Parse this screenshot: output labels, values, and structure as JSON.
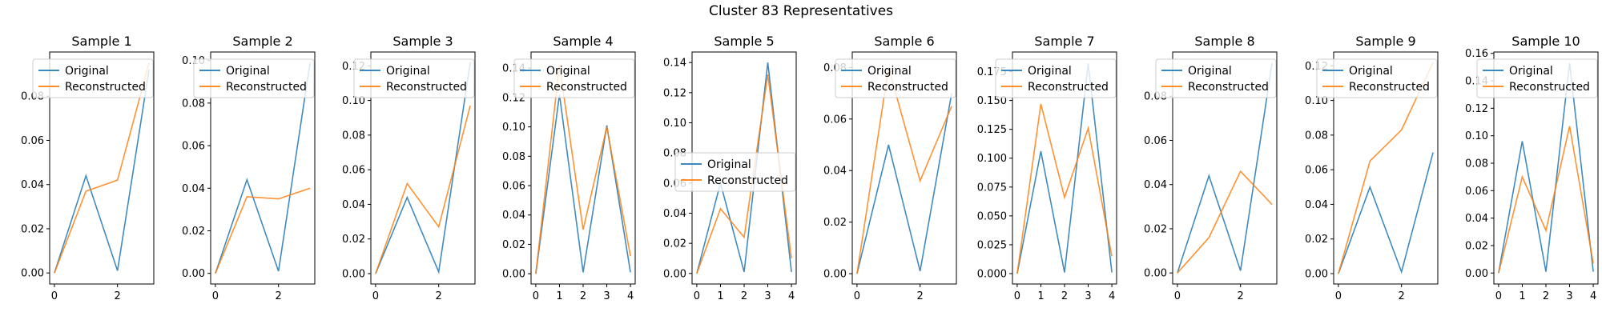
{
  "figure": {
    "title": "Cluster 83 Representatives"
  },
  "chart_data": [
    {
      "type": "line",
      "title": "Sample 1",
      "x": [
        0,
        1,
        2,
        3
      ],
      "xlim": [
        -0.15,
        3.15
      ],
      "xticks": [
        0,
        2
      ],
      "ylim": [
        -0.005,
        0.1
      ],
      "yticks": [
        0.0,
        0.02,
        0.04,
        0.06,
        0.08
      ],
      "ytick_decimals": 2,
      "grid": false,
      "legend": "top-left",
      "series": [
        {
          "name": "Original",
          "color": "#1f77b4",
          "values": [
            0.0,
            0.044,
            0.001,
            0.092
          ]
        },
        {
          "name": "Reconstructed",
          "color": "#ff7f0e",
          "values": [
            0.0,
            0.037,
            0.042,
            0.095
          ]
        }
      ]
    },
    {
      "type": "line",
      "title": "Sample 2",
      "x": [
        0,
        1,
        2,
        3
      ],
      "xlim": [
        -0.15,
        3.15
      ],
      "xticks": [
        0,
        2
      ],
      "ylim": [
        -0.005,
        0.104
      ],
      "yticks": [
        0.0,
        0.02,
        0.04,
        0.06,
        0.08,
        0.1
      ],
      "ytick_decimals": 2,
      "grid": false,
      "legend": "top-left",
      "series": [
        {
          "name": "Original",
          "color": "#1f77b4",
          "values": [
            0.0,
            0.044,
            0.001,
            0.099
          ]
        },
        {
          "name": "Reconstructed",
          "color": "#ff7f0e",
          "values": [
            0.0,
            0.036,
            0.035,
            0.04
          ]
        }
      ]
    },
    {
      "type": "line",
      "title": "Sample 3",
      "x": [
        0,
        1,
        2,
        3
      ],
      "xlim": [
        -0.15,
        3.15
      ],
      "xticks": [
        0,
        2
      ],
      "ylim": [
        -0.006,
        0.128
      ],
      "yticks": [
        0.0,
        0.02,
        0.04,
        0.06,
        0.08,
        0.1,
        0.12
      ],
      "ytick_decimals": 2,
      "grid": false,
      "legend": "top-left",
      "series": [
        {
          "name": "Original",
          "color": "#1f77b4",
          "values": [
            0.0,
            0.044,
            0.001,
            0.122
          ]
        },
        {
          "name": "Reconstructed",
          "color": "#ff7f0e",
          "values": [
            0.0,
            0.052,
            0.027,
            0.097
          ]
        }
      ]
    },
    {
      "type": "line",
      "title": "Sample 4",
      "x": [
        0,
        1,
        2,
        3,
        4
      ],
      "xlim": [
        -0.2,
        4.2
      ],
      "xticks": [
        0,
        1,
        2,
        3,
        4
      ],
      "ylim": [
        -0.007,
        0.151
      ],
      "yticks": [
        0.0,
        0.02,
        0.04,
        0.06,
        0.08,
        0.1,
        0.12,
        0.14
      ],
      "ytick_decimals": 2,
      "grid": false,
      "legend": "top-left",
      "series": [
        {
          "name": "Original",
          "color": "#1f77b4",
          "values": [
            0.0,
            0.122,
            0.001,
            0.101,
            0.001
          ]
        },
        {
          "name": "Reconstructed",
          "color": "#ff7f0e",
          "values": [
            0.0,
            0.142,
            0.03,
            0.1,
            0.012
          ]
        }
      ]
    },
    {
      "type": "line",
      "title": "Sample 5",
      "x": [
        0,
        1,
        2,
        3,
        4
      ],
      "xlim": [
        -0.2,
        4.2
      ],
      "xticks": [
        0,
        1,
        2,
        3,
        4
      ],
      "ylim": [
        -0.007,
        0.147
      ],
      "yticks": [
        0.0,
        0.02,
        0.04,
        0.06,
        0.08,
        0.1,
        0.12,
        0.14
      ],
      "ytick_decimals": 2,
      "grid": false,
      "legend": "center-left",
      "series": [
        {
          "name": "Original",
          "color": "#1f77b4",
          "values": [
            0.0,
            0.06,
            0.001,
            0.14,
            0.001
          ]
        },
        {
          "name": "Reconstructed",
          "color": "#ff7f0e",
          "values": [
            0.0,
            0.043,
            0.024,
            0.132,
            0.01
          ]
        }
      ]
    },
    {
      "type": "line",
      "title": "Sample 6",
      "x": [
        0,
        1,
        2,
        3
      ],
      "xlim": [
        -0.15,
        3.15
      ],
      "xticks": [
        0,
        2
      ],
      "ylim": [
        -0.004,
        0.086
      ],
      "yticks": [
        0.0,
        0.02,
        0.04,
        0.06,
        0.08
      ],
      "ytick_decimals": 2,
      "grid": false,
      "legend": "top-left",
      "series": [
        {
          "name": "Original",
          "color": "#1f77b4",
          "values": [
            0.0,
            0.05,
            0.001,
            0.07
          ]
        },
        {
          "name": "Reconstructed",
          "color": "#ff7f0e",
          "values": [
            0.0,
            0.08,
            0.036,
            0.065
          ]
        }
      ]
    },
    {
      "type": "line",
      "title": "Sample 7",
      "x": [
        0,
        1,
        2,
        3,
        4
      ],
      "xlim": [
        -0.2,
        4.2
      ],
      "xticks": [
        0,
        1,
        2,
        3,
        4
      ],
      "ylim": [
        -0.009,
        0.192
      ],
      "yticks": [
        0.0,
        0.025,
        0.05,
        0.075,
        0.1,
        0.125,
        0.15,
        0.175
      ],
      "ytick_decimals": 3,
      "grid": false,
      "legend": "top-left",
      "series": [
        {
          "name": "Original",
          "color": "#1f77b4",
          "values": [
            0.0,
            0.106,
            0.001,
            0.182,
            0.001
          ]
        },
        {
          "name": "Reconstructed",
          "color": "#ff7f0e",
          "values": [
            0.0,
            0.147,
            0.066,
            0.126,
            0.015
          ]
        }
      ]
    },
    {
      "type": "line",
      "title": "Sample 8",
      "x": [
        0,
        1,
        2,
        3
      ],
      "xlim": [
        -0.15,
        3.15
      ],
      "xticks": [
        0,
        2
      ],
      "ylim": [
        -0.005,
        0.1
      ],
      "yticks": [
        0.0,
        0.02,
        0.04,
        0.06,
        0.08
      ],
      "ytick_decimals": 2,
      "grid": false,
      "legend": "top-left",
      "series": [
        {
          "name": "Original",
          "color": "#1f77b4",
          "values": [
            0.0,
            0.044,
            0.001,
            0.095
          ]
        },
        {
          "name": "Reconstructed",
          "color": "#ff7f0e",
          "values": [
            0.0,
            0.016,
            0.046,
            0.031
          ]
        }
      ]
    },
    {
      "type": "line",
      "title": "Sample 9",
      "x": [
        0,
        1,
        2,
        3
      ],
      "xlim": [
        -0.15,
        3.15
      ],
      "xticks": [
        0,
        2
      ],
      "ylim": [
        -0.006,
        0.128
      ],
      "yticks": [
        0.0,
        0.02,
        0.04,
        0.06,
        0.08,
        0.1,
        0.12
      ],
      "ytick_decimals": 2,
      "grid": false,
      "legend": "top-left",
      "series": [
        {
          "name": "Original",
          "color": "#1f77b4",
          "values": [
            0.0,
            0.05,
            0.001,
            0.07
          ]
        },
        {
          "name": "Reconstructed",
          "color": "#ff7f0e",
          "values": [
            0.0,
            0.065,
            0.083,
            0.122
          ]
        }
      ]
    },
    {
      "type": "line",
      "title": "Sample 10",
      "x": [
        0,
        1,
        2,
        3,
        4
      ],
      "xlim": [
        -0.2,
        4.2
      ],
      "xticks": [
        0,
        1,
        2,
        3,
        4
      ],
      "ylim": [
        -0.008,
        0.161
      ],
      "yticks": [
        0.0,
        0.02,
        0.04,
        0.06,
        0.08,
        0.1,
        0.12,
        0.14,
        0.16
      ],
      "ytick_decimals": 2,
      "grid": false,
      "legend": "top-left",
      "series": [
        {
          "name": "Original",
          "color": "#1f77b4",
          "values": [
            0.0,
            0.096,
            0.001,
            0.153,
            0.001
          ]
        },
        {
          "name": "Reconstructed",
          "color": "#ff7f0e",
          "values": [
            0.0,
            0.07,
            0.031,
            0.107,
            0.007
          ]
        }
      ]
    }
  ]
}
